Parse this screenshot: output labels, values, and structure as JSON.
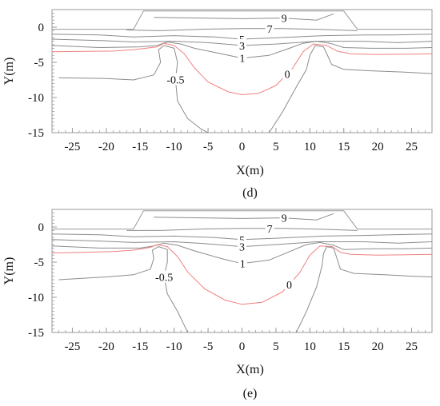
{
  "chart_data": [
    {
      "type": "contour",
      "caption": "(d)",
      "xlabel": "X(m)",
      "ylabel": "Y(m)",
      "xlim": [
        -28,
        28
      ],
      "ylim": [
        -15,
        2.5
      ],
      "xticks": [
        -25,
        -20,
        -15,
        -10,
        -5,
        0,
        5,
        10,
        15,
        20,
        25
      ],
      "yticks": [
        0,
        -5,
        -10,
        -15
      ],
      "grid": false,
      "colors": {
        "contour": "#8c8c8c",
        "zero_contour": "#f08080",
        "frame": "#9a9a9a"
      },
      "outline": [
        [
          -28,
          -0.3
        ],
        [
          -16,
          -0.3
        ],
        [
          -14.5,
          2.3
        ],
        [
          15,
          2.3
        ],
        [
          17,
          -0.3
        ],
        [
          28,
          -0.3
        ]
      ],
      "contours": [
        {
          "label": "9",
          "color": "gray",
          "points": [
            [
              -13,
              1.4
            ],
            [
              -6,
              1.3
            ],
            [
              0,
              1.2
            ],
            [
              6,
              1.3
            ],
            [
              11,
              1.0
            ],
            [
              13.5,
              1.9
            ]
          ]
        },
        {
          "label": "7",
          "color": "gray",
          "points": [
            [
              -17,
              -0.4
            ],
            [
              -12,
              -0.5
            ],
            [
              -6,
              -0.3
            ],
            [
              0,
              -0.2
            ],
            [
              6,
              -0.2
            ],
            [
              11,
              -0.3
            ],
            [
              14,
              -0.4
            ],
            [
              17,
              -0.5
            ]
          ]
        },
        {
          "label": "5",
          "color": "gray",
          "points": [
            [
              -28,
              -1.0
            ],
            [
              -21,
              -1.1
            ],
            [
              -16,
              -1.4
            ],
            [
              -10,
              -1.2
            ],
            [
              -4,
              -1.4
            ],
            [
              0,
              -1.7
            ],
            [
              5,
              -1.5
            ],
            [
              12,
              -1.2
            ],
            [
              18,
              -1.1
            ],
            [
              22,
              -1.1
            ],
            [
              28,
              -1.0
            ]
          ]
        },
        {
          "label": "3",
          "color": "gray",
          "points": [
            [
              -28,
              -1.7
            ],
            [
              -21,
              -1.9
            ],
            [
              -16,
              -2.1
            ],
            [
              -10,
              -2.0
            ],
            [
              -5,
              -2.2
            ],
            [
              0,
              -2.6
            ],
            [
              5,
              -2.4
            ],
            [
              11,
              -2.0
            ],
            [
              18,
              -2.0
            ],
            [
              23,
              -2.2
            ],
            [
              28,
              -2.0
            ]
          ]
        },
        {
          "label": "1",
          "color": "gray",
          "points": [
            [
              -28,
              -2.6
            ],
            [
              -21,
              -2.9
            ],
            [
              -15,
              -2.8
            ],
            [
              -12.5,
              -2.6
            ],
            [
              -11,
              -2.1
            ],
            [
              -9,
              -2.4
            ],
            [
              -7,
              -3.0
            ],
            [
              -3,
              -3.8
            ],
            [
              0,
              -4.4
            ],
            [
              4,
              -4.0
            ],
            [
              7,
              -3.0
            ],
            [
              9,
              -2.3
            ],
            [
              11,
              -2.0
            ],
            [
              13,
              -2.3
            ],
            [
              15,
              -2.9
            ],
            [
              19,
              -3.0
            ],
            [
              24,
              -3.0
            ],
            [
              28,
              -2.9
            ]
          ]
        },
        {
          "label": "0",
          "color": "red",
          "points": [
            [
              -28,
              -3.5
            ],
            [
              -19,
              -3.4
            ],
            [
              -16,
              -3.2
            ],
            [
              -12.5,
              -2.8
            ],
            [
              -11.5,
              -2.3
            ],
            [
              -10,
              -2.6
            ],
            [
              -8.5,
              -3.8
            ],
            [
              -7,
              -5.8
            ],
            [
              -5,
              -7.8
            ],
            [
              -2,
              -9.2
            ],
            [
              0,
              -9.6
            ],
            [
              2.5,
              -9.4
            ],
            [
              5,
              -8.3
            ],
            [
              7.5,
              -5.8
            ],
            [
              9,
              -3.5
            ],
            [
              10.5,
              -2.4
            ],
            [
              12.5,
              -2.6
            ],
            [
              14,
              -3.4
            ],
            [
              16,
              -3.8
            ],
            [
              20,
              -3.9
            ],
            [
              28,
              -3.8
            ]
          ]
        },
        {
          "label": "-0.5",
          "color": "gray",
          "points": [
            [
              -27,
              -7.2
            ],
            [
              -20,
              -7.3
            ],
            [
              -16,
              -7.5
            ],
            [
              -13,
              -6.8
            ],
            [
              -12,
              -5
            ],
            [
              -12.3,
              -3.2
            ],
            [
              -11.5,
              -2.6
            ],
            [
              -10,
              -3.0
            ],
            [
              -9.5,
              -5.0
            ],
            [
              -9.8,
              -7.5
            ],
            [
              -9.5,
              -10.5
            ],
            [
              -8,
              -13
            ],
            [
              -6,
              -14.5
            ],
            [
              -5,
              -15
            ]
          ]
        },
        {
          "label": "",
          "color": "gray",
          "points": [
            [
              4,
              -15
            ],
            [
              6,
              -12
            ],
            [
              8,
              -8.5
            ],
            [
              9.5,
              -6
            ],
            [
              10,
              -4
            ],
            [
              10.8,
              -2.6
            ],
            [
              12,
              -2.8
            ],
            [
              12.5,
              -3.8
            ],
            [
              13.2,
              -5.3
            ],
            [
              15,
              -6
            ],
            [
              19,
              -6.2
            ],
            [
              24,
              -6.4
            ],
            [
              28,
              -6.6
            ]
          ]
        }
      ]
    },
    {
      "type": "contour",
      "caption": "(e)",
      "xlabel": "X(m)",
      "ylabel": "Y(m)",
      "xlim": [
        -28,
        28
      ],
      "ylim": [
        -15,
        2.5
      ],
      "xticks": [
        -25,
        -20,
        -15,
        -10,
        -5,
        0,
        5,
        10,
        15,
        20,
        25
      ],
      "yticks": [
        0,
        -5,
        -10,
        -15
      ],
      "grid": false,
      "colors": {
        "contour": "#8c8c8c",
        "zero_contour": "#f08080",
        "frame": "#9a9a9a"
      },
      "outline": [
        [
          -28,
          -0.3
        ],
        [
          -16,
          -0.3
        ],
        [
          -14.5,
          2.3
        ],
        [
          15,
          2.3
        ],
        [
          17,
          -0.3
        ],
        [
          28,
          -0.3
        ]
      ],
      "contours": [
        {
          "label": "9",
          "color": "gray",
          "points": [
            [
              -13,
              1.4
            ],
            [
              -6,
              1.3
            ],
            [
              0,
              1.2
            ],
            [
              6,
              1.3
            ],
            [
              11,
              1.0
            ],
            [
              13.5,
              1.9
            ]
          ]
        },
        {
          "label": "7",
          "color": "gray",
          "points": [
            [
              -17,
              -0.5
            ],
            [
              -12,
              -0.5
            ],
            [
              -6,
              -0.3
            ],
            [
              0,
              -0.2
            ],
            [
              6,
              -0.2
            ],
            [
              11,
              -0.3
            ],
            [
              14,
              -0.4
            ],
            [
              17,
              -0.5
            ]
          ]
        },
        {
          "label": "5",
          "color": "gray",
          "points": [
            [
              -28,
              -1.0
            ],
            [
              -21,
              -1.1
            ],
            [
              -16,
              -1.4
            ],
            [
              -10,
              -1.3
            ],
            [
              -4,
              -1.5
            ],
            [
              0,
              -1.8
            ],
            [
              5,
              -1.6
            ],
            [
              12,
              -1.3
            ],
            [
              18,
              -1.2
            ],
            [
              22,
              -1.1
            ],
            [
              28,
              -1.0
            ]
          ]
        },
        {
          "label": "3",
          "color": "gray",
          "points": [
            [
              -28,
              -1.8
            ],
            [
              -21,
              -2.0
            ],
            [
              -16,
              -2.2
            ],
            [
              -10,
              -2.1
            ],
            [
              -5,
              -2.4
            ],
            [
              0,
              -2.8
            ],
            [
              5,
              -2.5
            ],
            [
              11,
              -2.1
            ],
            [
              18,
              -2.1
            ],
            [
              23,
              -2.3
            ],
            [
              28,
              -2.1
            ]
          ]
        },
        {
          "label": "1",
          "color": "gray",
          "points": [
            [
              -28,
              -2.7
            ],
            [
              -21,
              -3.0
            ],
            [
              -15,
              -3.0
            ],
            [
              -13,
              -2.7
            ],
            [
              -11.5,
              -2.3
            ],
            [
              -9.5,
              -2.6
            ],
            [
              -7,
              -3.4
            ],
            [
              -3,
              -4.5
            ],
            [
              0,
              -5.2
            ],
            [
              4,
              -4.7
            ],
            [
              7,
              -3.5
            ],
            [
              9.5,
              -2.5
            ],
            [
              11.5,
              -2.2
            ],
            [
              13.5,
              -2.6
            ],
            [
              15,
              -3.2
            ],
            [
              19,
              -3.1
            ],
            [
              24,
              -3.1
            ],
            [
              28,
              -3.0
            ]
          ]
        },
        {
          "label": "0",
          "color": "red",
          "points": [
            [
              -28,
              -3.7
            ],
            [
              -19,
              -3.5
            ],
            [
              -16,
              -3.3
            ],
            [
              -13.5,
              -2.9
            ],
            [
              -12.5,
              -2.5
            ],
            [
              -11,
              -2.8
            ],
            [
              -9.5,
              -4.2
            ],
            [
              -8,
              -6.4
            ],
            [
              -5.5,
              -8.8
            ],
            [
              -2.5,
              -10.4
            ],
            [
              0,
              -11.0
            ],
            [
              3,
              -10.7
            ],
            [
              6,
              -9.2
            ],
            [
              8.5,
              -6.5
            ],
            [
              10,
              -4.0
            ],
            [
              11.5,
              -2.7
            ],
            [
              13.3,
              -2.8
            ],
            [
              14.5,
              -3.6
            ],
            [
              16,
              -3.9
            ],
            [
              20,
              -4.0
            ],
            [
              28,
              -3.9
            ]
          ]
        },
        {
          "label": "-0.5",
          "color": "gray",
          "points": [
            [
              -27,
              -7.5
            ],
            [
              -20,
              -7.1
            ],
            [
              -16,
              -6.8
            ],
            [
              -13.5,
              -6.0
            ],
            [
              -13,
              -4.5
            ],
            [
              -13.2,
              -3.3
            ],
            [
              -12.3,
              -2.8
            ],
            [
              -11,
              -3.2
            ],
            [
              -11,
              -5.0
            ],
            [
              -11.5,
              -7.0
            ],
            [
              -11,
              -9.5
            ],
            [
              -9.5,
              -12.0
            ],
            [
              -8.5,
              -14.0
            ],
            [
              -8,
              -15
            ]
          ]
        },
        {
          "label": "",
          "color": "gray",
          "points": [
            [
              8,
              -15
            ],
            [
              9.5,
              -12
            ],
            [
              11,
              -8.5
            ],
            [
              11.8,
              -5.5
            ],
            [
              12,
              -3.8
            ],
            [
              12.5,
              -2.8
            ],
            [
              13.5,
              -3.0
            ],
            [
              14,
              -4.5
            ],
            [
              14.5,
              -6.0
            ],
            [
              16.5,
              -6.6
            ],
            [
              21,
              -6.8
            ],
            [
              25,
              -7.0
            ],
            [
              28,
              -7.1
            ]
          ]
        }
      ]
    }
  ]
}
